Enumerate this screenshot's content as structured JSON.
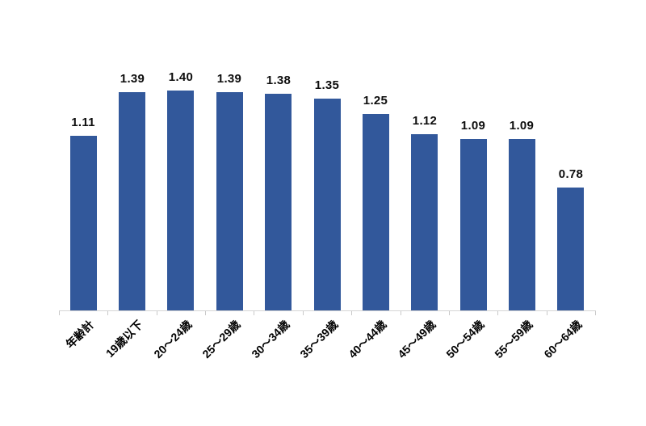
{
  "chart_data": {
    "type": "bar",
    "title": "",
    "xlabel": "",
    "ylabel": "",
    "categories": [
      "年齢計",
      "19歳以下",
      "20〜24歳",
      "25〜29歳",
      "30〜34歳",
      "35〜39歳",
      "40〜44歳",
      "45〜49歳",
      "50〜54歳",
      "55〜59歳",
      "60〜64歳"
    ],
    "values": [
      1.11,
      1.39,
      1.4,
      1.39,
      1.38,
      1.35,
      1.25,
      1.12,
      1.09,
      1.09,
      0.78
    ],
    "value_labels": [
      "1.11",
      "1.39",
      "1.40",
      "1.39",
      "1.38",
      "1.35",
      "1.25",
      "1.12",
      "1.09",
      "1.09",
      "0.78"
    ],
    "ylim": [
      0,
      1.6
    ],
    "grid": false,
    "legend": false,
    "x_tick_rotation": 45,
    "colors": {
      "bar": "#32589B",
      "value_label": "#0d0d0d",
      "category_label": "#000000",
      "axis_line": "#d4d4d4",
      "tick": "#c9c9c9",
      "background": "#ffffff"
    }
  }
}
